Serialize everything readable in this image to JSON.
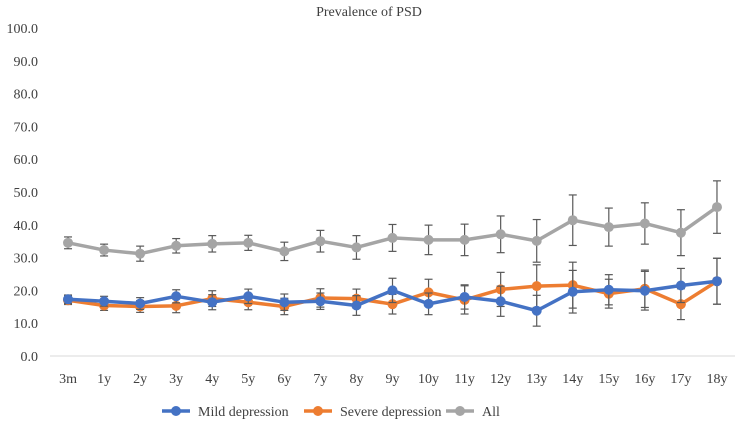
{
  "chart_data": {
    "type": "line",
    "title": "Prevalence of PSD",
    "xlabel": "",
    "ylabel": "",
    "ylim": [
      0,
      100
    ],
    "yticks": [
      "0.0",
      "10.0",
      "20.0",
      "30.0",
      "40.0",
      "50.0",
      "60.0",
      "70.0",
      "80.0",
      "90.0",
      "100.0"
    ],
    "grid": false,
    "legend_position": "bottom",
    "categories": [
      "3m",
      "1y",
      "2y",
      "3y",
      "4y",
      "5y",
      "6y",
      "7y",
      "8y",
      "9y",
      "10y",
      "11y",
      "12y",
      "13y",
      "14y",
      "15y",
      "16y",
      "17y",
      "18y"
    ],
    "series": [
      {
        "name": "Mild depression",
        "color": "#4472C4",
        "values": [
          17.3,
          16.7,
          16.0,
          18.2,
          16.4,
          18.2,
          16.4,
          16.7,
          15.4,
          20.0,
          15.9,
          18.0,
          16.7,
          13.8,
          19.6,
          20.2,
          19.9,
          21.5,
          22.8
        ],
        "errors": [
          1.3,
          1.5,
          1.8,
          2.0,
          2.3,
          2.2,
          2.5,
          2.5,
          3.0,
          3.7,
          3.3,
          3.7,
          4.6,
          4.7,
          6.5,
          4.6,
          5.9,
          5.2,
          7.0
        ]
      },
      {
        "name": "Severe depression",
        "color": "#ED7D31",
        "values": [
          17.0,
          15.4,
          15.1,
          15.3,
          17.5,
          16.4,
          15.1,
          17.7,
          17.5,
          15.8,
          19.4,
          17.1,
          20.3,
          21.3,
          21.6,
          19.0,
          20.5,
          15.8,
          22.8
        ],
        "errors": [
          1.3,
          1.5,
          1.8,
          2.1,
          2.4,
          2.3,
          2.5,
          2.8,
          2.9,
          3.0,
          4.0,
          4.3,
          5.2,
          6.5,
          7.0,
          4.4,
          5.7,
          4.7,
          7.0
        ]
      },
      {
        "name": "All",
        "color": "#A5A5A5",
        "values": [
          34.5,
          32.3,
          31.2,
          33.6,
          34.2,
          34.5,
          31.9,
          35.0,
          33.1,
          36.0,
          35.4,
          35.4,
          37.1,
          35.1,
          41.4,
          39.3,
          40.4,
          37.6,
          45.4
        ],
        "errors": [
          1.8,
          1.8,
          2.3,
          2.2,
          2.5,
          2.3,
          2.8,
          3.3,
          3.6,
          4.1,
          4.5,
          4.8,
          5.6,
          6.5,
          7.7,
          5.8,
          6.3,
          7.0,
          8.0
        ]
      }
    ]
  }
}
